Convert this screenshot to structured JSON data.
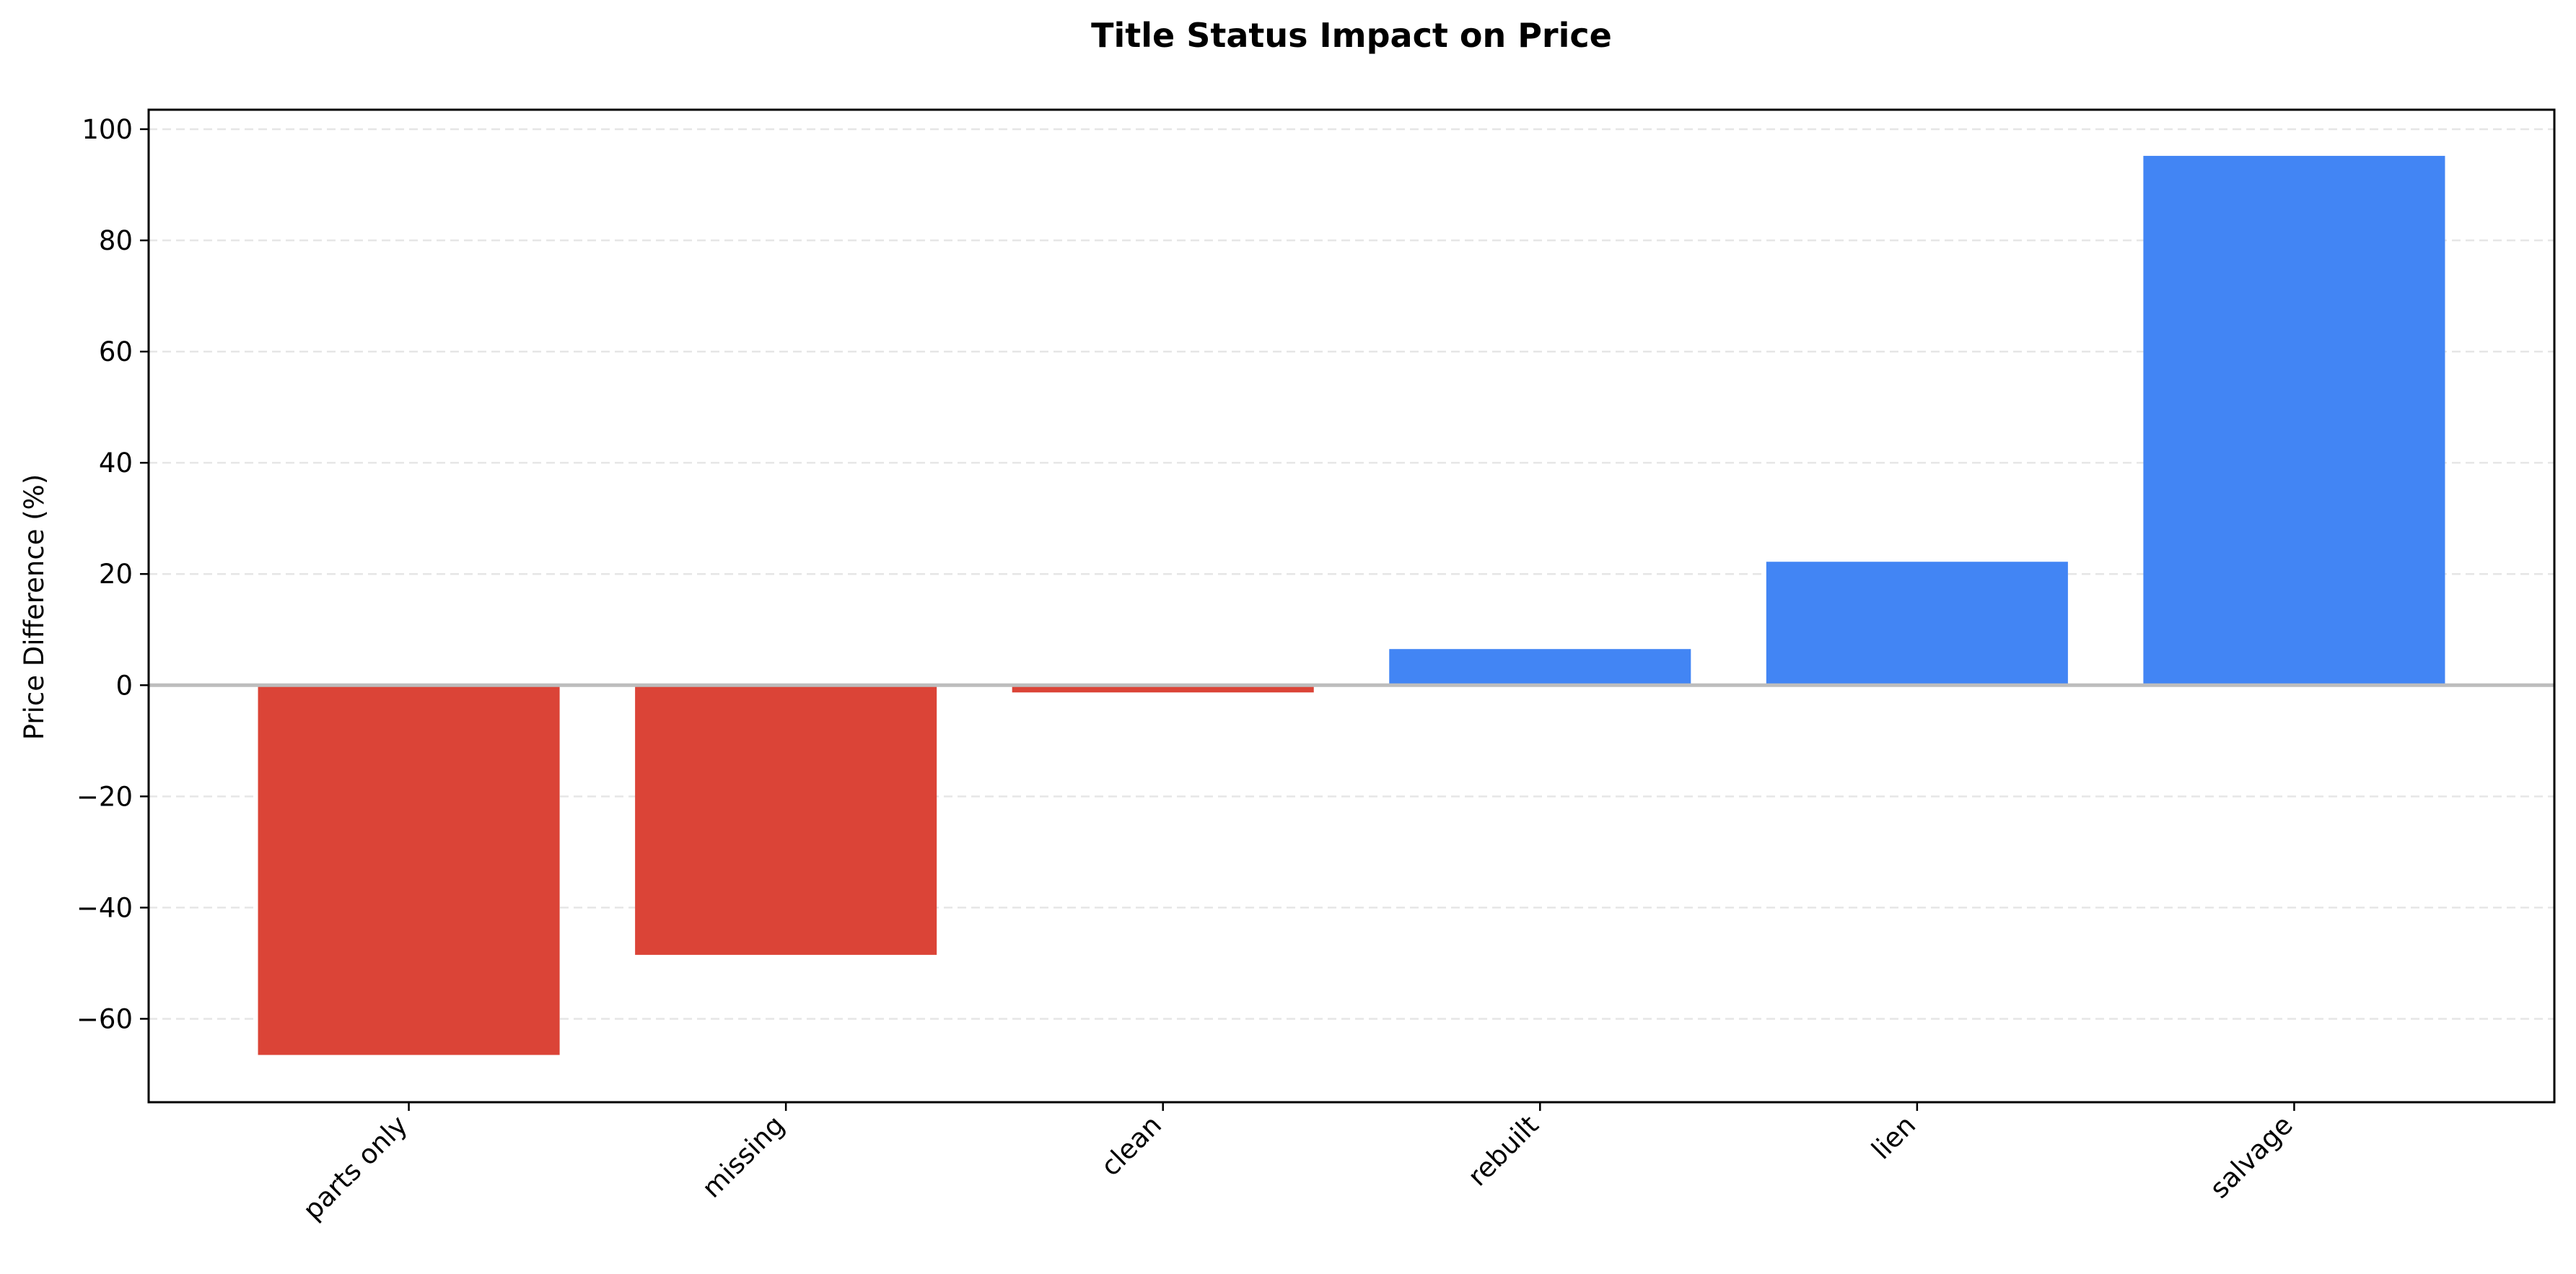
{
  "chart_data": {
    "type": "bar",
    "title": "Title Status Impact on Price",
    "xlabel": "",
    "ylabel": "Price Difference (%)",
    "categories": [
      "parts only",
      "missing",
      "clean",
      "rebuilt",
      "lien",
      "salvage"
    ],
    "values": [
      -66.5,
      -48.5,
      -1.3,
      6.5,
      22.2,
      95.2
    ],
    "ylim": [
      -75,
      103.5
    ],
    "yticks": [
      100,
      80,
      60,
      40,
      20,
      0,
      -20,
      -40,
      -60
    ],
    "ytick_labels": [
      "100",
      "80",
      "60",
      "40",
      "20",
      "0",
      "−20",
      "−40",
      "−60"
    ],
    "grid": "y, dashed",
    "colors": {
      "negative": "#db4437",
      "positive": "#4285f4",
      "zero_line": "#bdbdbd"
    }
  }
}
